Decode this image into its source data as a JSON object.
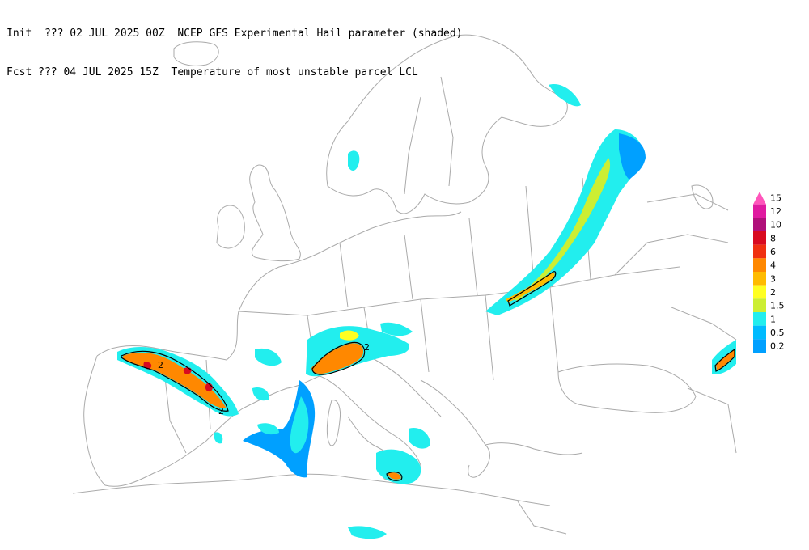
{
  "header": {
    "line1": "Init  ??? 02 JUL 2025 00Z  NCEP GFS Experimental Hail parameter (shaded)",
    "line2": "Fcst ??? 04 JUL 2025 15Z  Temperature of most unstable parcel LCL"
  },
  "legend": {
    "labels": [
      "15",
      "12",
      "10",
      "8",
      "6",
      "4",
      "3",
      "2",
      "1.5",
      "1",
      "0.5",
      "0.2"
    ],
    "colors": [
      "#ff55bb",
      "#e01aa0",
      "#b0107a",
      "#d80a20",
      "#f03010",
      "#ff8800",
      "#ffbb00",
      "#ffff22",
      "#ccee33",
      "#22eeee",
      "#00bbff",
      "#00a0ff"
    ]
  },
  "contour_labels": [
    "2",
    "2",
    "2"
  ],
  "colors": {
    "coastline": "#aaaaaa",
    "contour": "#000000",
    "background": "#ffffff"
  }
}
